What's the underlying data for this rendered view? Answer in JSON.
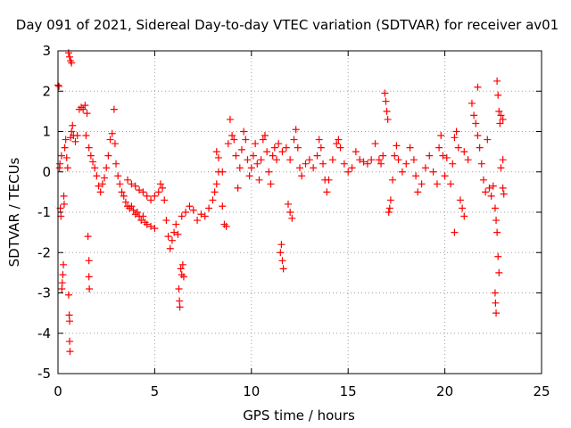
{
  "chart_data": {
    "type": "scatter",
    "title": "Day 091 of 2021, Sidereal Day-to-day VTEC variation (SDTVAR) for receiver av01",
    "xlabel": "GPS time / hours",
    "ylabel": "SDTVAR / TECUs",
    "xlim": [
      0,
      25
    ],
    "ylim": [
      -5,
      3
    ],
    "xticks": [
      0,
      5,
      10,
      15,
      20,
      25
    ],
    "yticks": [
      -5,
      -4,
      -3,
      -2,
      -1,
      0,
      1,
      2,
      3
    ],
    "grid": true,
    "marker": "+",
    "color": "#ff0000",
    "series": [
      {
        "name": "SDTVAR",
        "points": [
          [
            0.0,
            2.15
          ],
          [
            0.05,
            2.12
          ],
          [
            0.08,
            0.1
          ],
          [
            0.1,
            0.2
          ],
          [
            0.12,
            -0.9
          ],
          [
            0.15,
            -1.1
          ],
          [
            0.18,
            0.4
          ],
          [
            0.2,
            -2.9
          ],
          [
            0.22,
            -2.75
          ],
          [
            0.25,
            -2.55
          ],
          [
            0.28,
            -2.3
          ],
          [
            0.3,
            -0.6
          ],
          [
            0.32,
            -0.8
          ],
          [
            0.35,
            0.6
          ],
          [
            0.4,
            0.8
          ],
          [
            0.45,
            0.35
          ],
          [
            0.5,
            0.1
          ],
          [
            0.55,
            -3.05
          ],
          [
            0.58,
            -3.55
          ],
          [
            0.6,
            -3.7
          ],
          [
            0.6,
            -4.2
          ],
          [
            0.62,
            -4.45
          ],
          [
            0.55,
            2.95
          ],
          [
            0.6,
            2.85
          ],
          [
            0.65,
            2.75
          ],
          [
            0.7,
            2.7
          ],
          [
            0.65,
            0.85
          ],
          [
            0.7,
            1.0
          ],
          [
            0.75,
            1.15
          ],
          [
            0.8,
            0.9
          ],
          [
            0.9,
            0.75
          ],
          [
            1.0,
            0.9
          ],
          [
            1.1,
            1.55
          ],
          [
            1.2,
            1.6
          ],
          [
            1.3,
            1.55
          ],
          [
            1.4,
            1.65
          ],
          [
            1.5,
            1.45
          ],
          [
            1.55,
            -1.6
          ],
          [
            1.6,
            -2.2
          ],
          [
            1.6,
            -2.6
          ],
          [
            1.62,
            -2.9
          ],
          [
            1.45,
            0.9
          ],
          [
            1.6,
            0.6
          ],
          [
            1.7,
            0.4
          ],
          [
            1.8,
            0.25
          ],
          [
            1.9,
            0.1
          ],
          [
            2.0,
            -0.1
          ],
          [
            2.1,
            -0.35
          ],
          [
            2.2,
            -0.5
          ],
          [
            2.3,
            -0.3
          ],
          [
            2.4,
            -0.15
          ],
          [
            2.5,
            0.1
          ],
          [
            2.6,
            0.4
          ],
          [
            2.7,
            0.8
          ],
          [
            2.8,
            0.95
          ],
          [
            2.9,
            1.55
          ],
          [
            2.95,
            0.7
          ],
          [
            3.0,
            0.2
          ],
          [
            3.1,
            -0.1
          ],
          [
            3.2,
            -0.3
          ],
          [
            3.3,
            -0.5
          ],
          [
            3.4,
            -0.6
          ],
          [
            3.5,
            -0.75
          ],
          [
            3.6,
            -0.85
          ],
          [
            3.7,
            -0.9
          ],
          [
            3.8,
            -0.85
          ],
          [
            3.9,
            -0.95
          ],
          [
            4.0,
            -1.05
          ],
          [
            4.1,
            -1.0
          ],
          [
            4.2,
            -1.1
          ],
          [
            4.3,
            -1.2
          ],
          [
            4.4,
            -1.1
          ],
          [
            4.5,
            -1.25
          ],
          [
            4.6,
            -1.3
          ],
          [
            4.8,
            -1.35
          ],
          [
            5.0,
            -1.4
          ],
          [
            3.6,
            -0.2
          ],
          [
            3.8,
            -0.3
          ],
          [
            4.0,
            -0.35
          ],
          [
            4.2,
            -0.45
          ],
          [
            4.4,
            -0.5
          ],
          [
            4.6,
            -0.6
          ],
          [
            4.8,
            -0.7
          ],
          [
            5.0,
            -0.6
          ],
          [
            5.2,
            -0.5
          ],
          [
            5.3,
            -0.3
          ],
          [
            5.4,
            -0.4
          ],
          [
            5.5,
            -0.7
          ],
          [
            5.6,
            -1.2
          ],
          [
            5.7,
            -1.6
          ],
          [
            5.8,
            -1.9
          ],
          [
            5.9,
            -1.7
          ],
          [
            6.0,
            -1.5
          ],
          [
            6.1,
            -1.3
          ],
          [
            6.2,
            -1.55
          ],
          [
            6.25,
            -2.9
          ],
          [
            6.28,
            -3.2
          ],
          [
            6.3,
            -3.35
          ],
          [
            6.35,
            -2.4
          ],
          [
            6.4,
            -2.55
          ],
          [
            6.45,
            -2.3
          ],
          [
            6.5,
            -2.6
          ],
          [
            6.4,
            -1.1
          ],
          [
            6.6,
            -1.0
          ],
          [
            6.8,
            -0.85
          ],
          [
            7.0,
            -0.95
          ],
          [
            7.2,
            -1.2
          ],
          [
            7.4,
            -1.05
          ],
          [
            7.6,
            -1.1
          ],
          [
            7.8,
            -0.9
          ],
          [
            8.0,
            -0.7
          ],
          [
            8.1,
            -0.5
          ],
          [
            8.2,
            -0.3
          ],
          [
            8.3,
            0.0
          ],
          [
            8.2,
            0.5
          ],
          [
            8.3,
            0.35
          ],
          [
            8.5,
            0.0
          ],
          [
            8.5,
            -0.85
          ],
          [
            8.6,
            -1.3
          ],
          [
            8.7,
            -1.35
          ],
          [
            8.8,
            0.7
          ],
          [
            8.9,
            1.3
          ],
          [
            9.0,
            0.9
          ],
          [
            9.1,
            0.8
          ],
          [
            9.2,
            0.4
          ],
          [
            9.3,
            -0.4
          ],
          [
            9.4,
            0.1
          ],
          [
            9.5,
            0.55
          ],
          [
            9.6,
            1.0
          ],
          [
            9.7,
            0.8
          ],
          [
            9.8,
            0.3
          ],
          [
            9.9,
            -0.1
          ],
          [
            10.0,
            0.1
          ],
          [
            10.1,
            0.4
          ],
          [
            10.2,
            0.7
          ],
          [
            10.3,
            0.2
          ],
          [
            10.4,
            -0.2
          ],
          [
            10.5,
            0.3
          ],
          [
            10.6,
            0.8
          ],
          [
            10.7,
            0.9
          ],
          [
            10.8,
            0.5
          ],
          [
            10.9,
            0.0
          ],
          [
            11.0,
            -0.3
          ],
          [
            11.1,
            0.4
          ],
          [
            11.2,
            0.6
          ],
          [
            11.3,
            0.3
          ],
          [
            11.4,
            0.7
          ],
          [
            11.5,
            -2.0
          ],
          [
            11.55,
            -1.8
          ],
          [
            11.6,
            -2.2
          ],
          [
            11.65,
            -2.4
          ],
          [
            11.6,
            0.5
          ],
          [
            11.8,
            0.6
          ],
          [
            11.9,
            -0.8
          ],
          [
            12.0,
            -1.0
          ],
          [
            12.1,
            -1.15
          ],
          [
            12.0,
            0.3
          ],
          [
            12.2,
            0.8
          ],
          [
            12.3,
            1.05
          ],
          [
            12.4,
            0.6
          ],
          [
            12.5,
            0.1
          ],
          [
            12.6,
            -0.1
          ],
          [
            12.8,
            0.2
          ],
          [
            13.0,
            0.3
          ],
          [
            13.2,
            0.1
          ],
          [
            13.4,
            0.4
          ],
          [
            13.5,
            0.8
          ],
          [
            13.6,
            0.6
          ],
          [
            13.7,
            0.2
          ],
          [
            13.8,
            -0.2
          ],
          [
            13.9,
            -0.5
          ],
          [
            14.0,
            -0.2
          ],
          [
            14.2,
            0.3
          ],
          [
            14.4,
            0.7
          ],
          [
            14.5,
            0.8
          ],
          [
            14.6,
            0.6
          ],
          [
            14.8,
            0.2
          ],
          [
            15.0,
            0.0
          ],
          [
            15.2,
            0.1
          ],
          [
            15.4,
            0.5
          ],
          [
            15.6,
            0.3
          ],
          [
            15.8,
            0.25
          ],
          [
            16.0,
            0.2
          ],
          [
            16.2,
            0.3
          ],
          [
            16.4,
            0.7
          ],
          [
            16.6,
            0.3
          ],
          [
            16.7,
            0.2
          ],
          [
            16.8,
            0.4
          ],
          [
            16.9,
            1.95
          ],
          [
            16.95,
            1.75
          ],
          [
            17.0,
            1.5
          ],
          [
            17.05,
            1.3
          ],
          [
            17.1,
            -1.0
          ],
          [
            17.15,
            -0.9
          ],
          [
            17.2,
            -0.7
          ],
          [
            17.3,
            -0.2
          ],
          [
            17.4,
            0.4
          ],
          [
            17.5,
            0.65
          ],
          [
            17.6,
            0.3
          ],
          [
            17.8,
            0.0
          ],
          [
            18.0,
            0.2
          ],
          [
            18.2,
            0.6
          ],
          [
            18.4,
            0.3
          ],
          [
            18.5,
            -0.1
          ],
          [
            18.6,
            -0.5
          ],
          [
            18.8,
            -0.3
          ],
          [
            19.0,
            0.1
          ],
          [
            19.2,
            0.4
          ],
          [
            19.4,
            0.0
          ],
          [
            19.6,
            -0.3
          ],
          [
            19.7,
            0.6
          ],
          [
            19.8,
            0.9
          ],
          [
            19.9,
            0.4
          ],
          [
            20.0,
            -0.1
          ],
          [
            20.1,
            0.35
          ],
          [
            20.3,
            -0.3
          ],
          [
            20.4,
            0.2
          ],
          [
            20.5,
            0.85
          ],
          [
            20.6,
            1.0
          ],
          [
            20.7,
            0.6
          ],
          [
            20.8,
            -0.7
          ],
          [
            20.9,
            -0.9
          ],
          [
            21.0,
            -1.1
          ],
          [
            20.5,
            -1.5
          ],
          [
            21.0,
            0.5
          ],
          [
            21.2,
            0.3
          ],
          [
            21.4,
            1.7
          ],
          [
            21.5,
            1.4
          ],
          [
            21.6,
            1.2
          ],
          [
            21.7,
            0.9
          ],
          [
            21.8,
            0.6
          ],
          [
            21.9,
            0.2
          ],
          [
            22.0,
            -0.2
          ],
          [
            22.1,
            -0.5
          ],
          [
            21.7,
            2.1
          ],
          [
            22.2,
            0.8
          ],
          [
            22.3,
            -0.4
          ],
          [
            22.4,
            -0.6
          ],
          [
            22.5,
            -0.35
          ],
          [
            22.6,
            -0.9
          ],
          [
            22.65,
            -1.2
          ],
          [
            22.7,
            -1.5
          ],
          [
            22.75,
            -2.1
          ],
          [
            22.8,
            -2.5
          ],
          [
            22.6,
            -3.0
          ],
          [
            22.62,
            -3.25
          ],
          [
            22.65,
            -3.5
          ],
          [
            22.7,
            2.25
          ],
          [
            22.75,
            1.9
          ],
          [
            22.8,
            1.5
          ],
          [
            22.85,
            1.2
          ],
          [
            22.9,
            1.4
          ],
          [
            23.0,
            1.3
          ],
          [
            22.9,
            0.1
          ],
          [
            23.0,
            -0.4
          ],
          [
            23.05,
            -0.55
          ],
          [
            23.0,
            0.3
          ]
        ]
      }
    ]
  }
}
